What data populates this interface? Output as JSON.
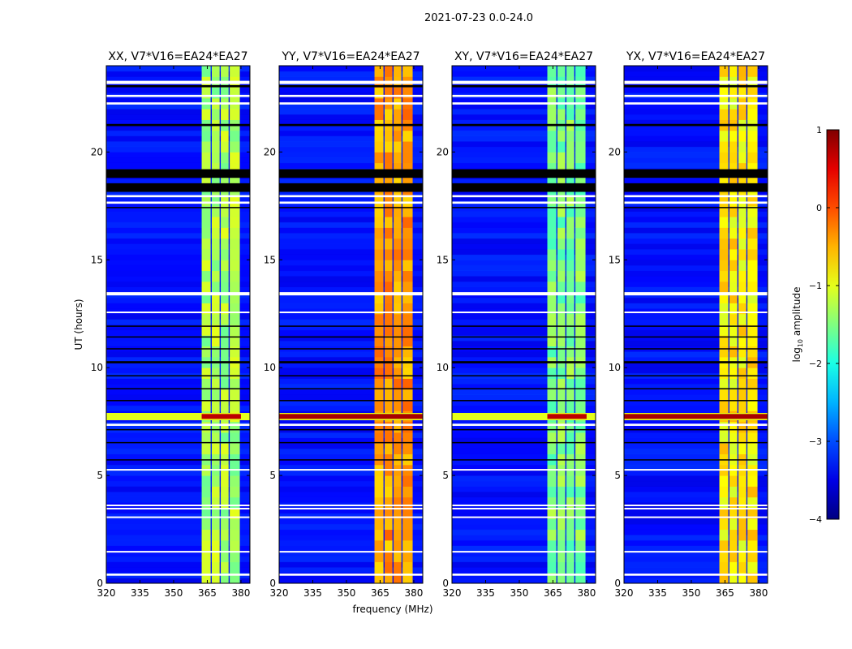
{
  "chart_data": {
    "type": "heatmap",
    "title": "2021-07-23 0.0-24.0",
    "xlabel": "frequency (MHz)",
    "ylabel": "UT (hours)",
    "xlim": [
      320,
      384
    ],
    "ylim": [
      0,
      24
    ],
    "xticks": [
      "320",
      "335",
      "350",
      "365",
      "380"
    ],
    "xtick_values": [
      320,
      335,
      350,
      365,
      380
    ],
    "yticks": [
      "0",
      "5",
      "10",
      "15",
      "20"
    ],
    "ytick_values": [
      0,
      5,
      10,
      15,
      20
    ],
    "colorbar": {
      "label": "log10 amplitude",
      "label_main": "log",
      "label_sub": "10",
      "label_rest": " amplitude",
      "range": [
        -4,
        1
      ],
      "ticks": [
        "−4",
        "−3",
        "−2",
        "−1",
        "0",
        "1"
      ],
      "tick_values": [
        -4,
        -3,
        -2,
        -1,
        0,
        1
      ],
      "colormap": "jet"
    },
    "background_level": -3.3,
    "rfi_bands_mhz": [
      [
        362.5,
        366.5
      ],
      [
        367.0,
        370.5
      ],
      [
        371.0,
        374.5
      ],
      [
        375.0,
        379.5
      ]
    ],
    "white_flagged_rows_ut": [
      [
        23.15,
        23.3
      ],
      [
        22.55,
        22.65
      ],
      [
        22.2,
        22.3
      ],
      [
        17.9,
        18.0
      ],
      [
        17.6,
        17.7
      ],
      [
        13.35,
        13.5
      ],
      [
        12.55,
        12.6
      ],
      [
        7.3,
        7.4
      ],
      [
        5.25,
        5.3
      ],
      [
        3.6,
        3.65
      ],
      [
        3.45,
        3.5
      ],
      [
        3.05,
        3.1
      ],
      [
        1.45,
        1.5
      ],
      [
        0.35,
        0.45
      ]
    ],
    "black_flagged_rows_ut": [
      [
        23.0,
        23.1
      ],
      [
        21.2,
        21.3
      ],
      [
        18.8,
        19.2
      ],
      [
        18.15,
        18.55
      ],
      [
        17.4,
        17.45
      ],
      [
        11.9,
        11.95
      ],
      [
        11.4,
        11.45
      ],
      [
        10.85,
        10.9
      ],
      [
        10.2,
        10.3
      ],
      [
        9.6,
        9.65
      ],
      [
        9.0,
        9.05
      ],
      [
        8.45,
        8.5
      ],
      [
        7.1,
        7.15
      ],
      [
        6.5,
        6.55
      ],
      [
        5.7,
        5.75
      ]
    ],
    "panels": [
      {
        "title": "XX, V7*V16=EA24*EA27",
        "band_level": -1.3,
        "event_ut": 7.75,
        "event_level": 0.7,
        "event_full_width": false
      },
      {
        "title": "YY, V7*V16=EA24*EA27",
        "band_level": -0.4,
        "event_ut": 7.75,
        "event_level": 0.8,
        "event_full_width": true
      },
      {
        "title": "XY, V7*V16=EA24*EA27",
        "band_level": -1.5,
        "event_ut": 7.75,
        "event_level": 0.7,
        "event_full_width": false
      },
      {
        "title": "YX, V7*V16=EA24*EA27",
        "band_level": -0.8,
        "event_ut": 7.75,
        "event_level": 0.8,
        "event_full_width": true
      }
    ]
  }
}
